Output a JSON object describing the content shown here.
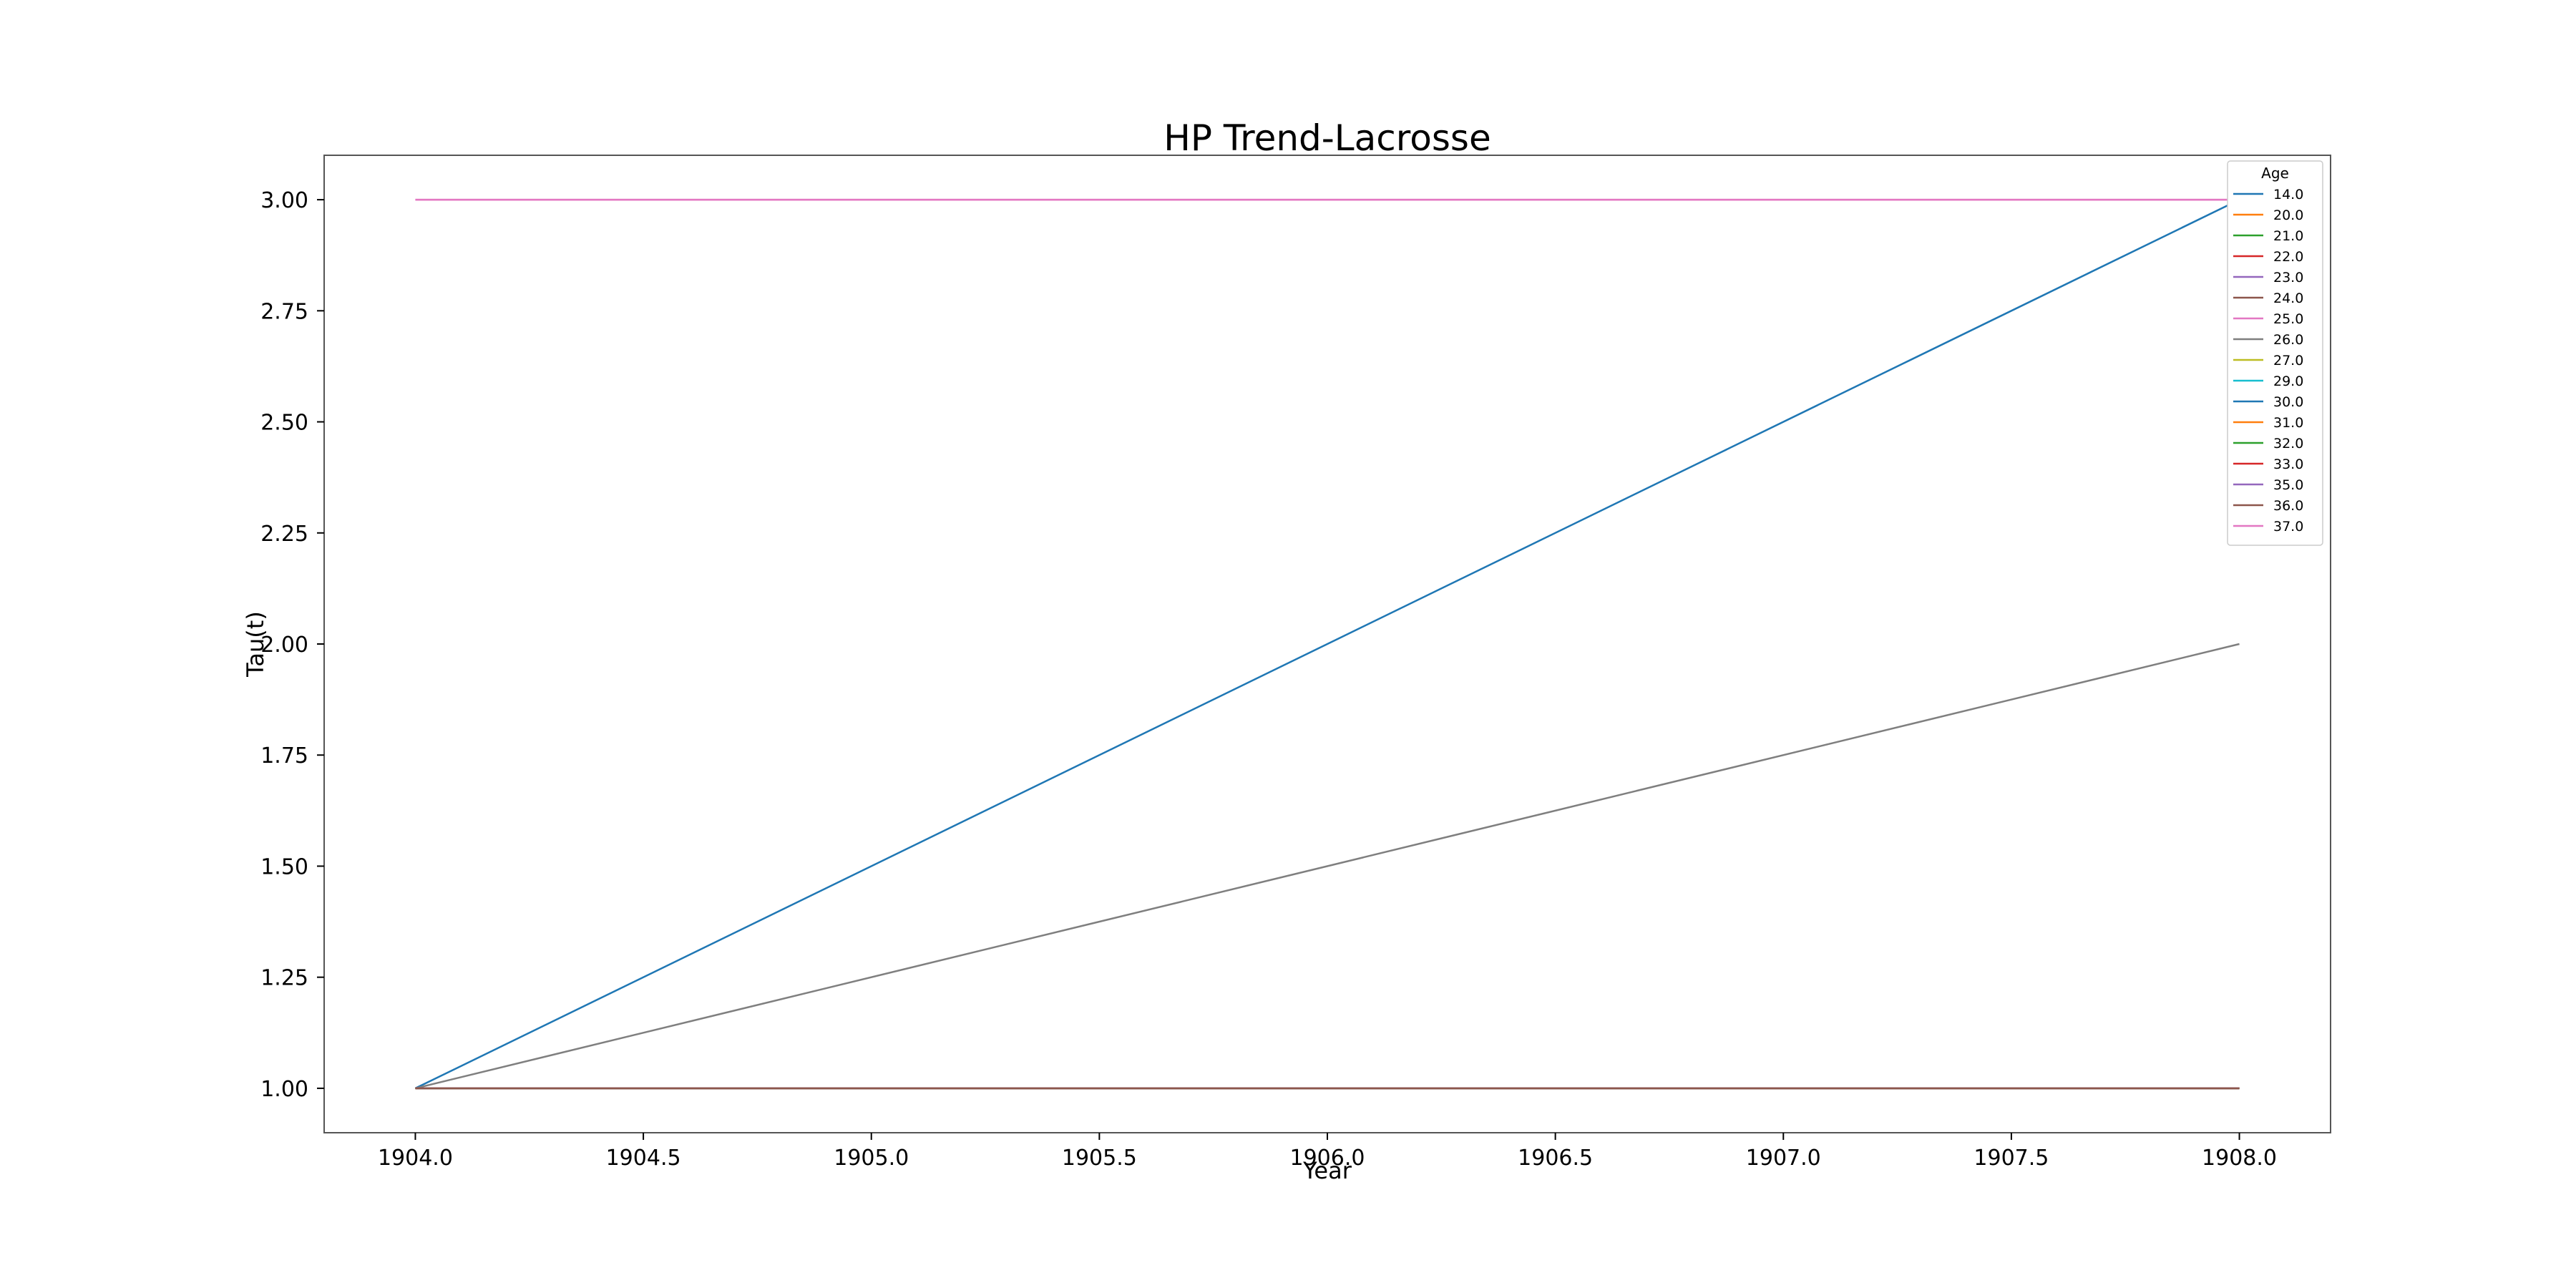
{
  "chart_data": {
    "type": "line",
    "title": "HP Trend-Lacrosse",
    "xlabel": "Year",
    "ylabel": "Tau(t)",
    "xlim": [
      1903.8,
      1908.2
    ],
    "ylim": [
      0.9,
      3.1
    ],
    "xticks": [
      1904.0,
      1904.5,
      1905.0,
      1905.5,
      1906.0,
      1906.5,
      1907.0,
      1907.5,
      1908.0
    ],
    "xtick_labels": [
      "1904.0",
      "1904.5",
      "1905.0",
      "1905.5",
      "1906.0",
      "1906.5",
      "1907.0",
      "1907.5",
      "1908.0"
    ],
    "yticks": [
      1.0,
      1.25,
      1.5,
      1.75,
      2.0,
      2.25,
      2.5,
      2.75,
      3.0
    ],
    "ytick_labels": [
      "1.00",
      "1.25",
      "1.50",
      "1.75",
      "2.00",
      "2.25",
      "2.50",
      "2.75",
      "3.00"
    ],
    "grid": false,
    "legend": {
      "title": "Age",
      "placement": "top-right"
    },
    "series": [
      {
        "name": "14.0",
        "color": "#1f77b4",
        "x": [
          1904.0,
          1908.0
        ],
        "y": [
          1.0,
          3.0
        ]
      },
      {
        "name": "20.0",
        "color": "#ff7f0e",
        "x": [
          1904.0,
          1908.0
        ],
        "y": [
          1.0,
          1.0
        ]
      },
      {
        "name": "21.0",
        "color": "#2ca02c",
        "x": [
          1904.0,
          1908.0
        ],
        "y": [
          1.0,
          1.0
        ]
      },
      {
        "name": "22.0",
        "color": "#d62728",
        "x": [
          1904.0,
          1908.0
        ],
        "y": [
          1.0,
          1.0
        ]
      },
      {
        "name": "23.0",
        "color": "#9467bd",
        "x": [
          1904.0,
          1908.0
        ],
        "y": [
          1.0,
          1.0
        ]
      },
      {
        "name": "24.0",
        "color": "#8c564b",
        "x": [
          1904.0,
          1908.0
        ],
        "y": [
          1.0,
          1.0
        ]
      },
      {
        "name": "25.0",
        "color": "#e377c2",
        "x": [
          1904.0,
          1908.0
        ],
        "y": [
          3.0,
          3.0
        ]
      },
      {
        "name": "26.0",
        "color": "#7f7f7f",
        "x": [
          1904.0,
          1908.0
        ],
        "y": [
          1.0,
          2.0
        ]
      },
      {
        "name": "27.0",
        "color": "#bcbd22",
        "x": [
          1904.0,
          1908.0
        ],
        "y": [
          1.0,
          1.0
        ]
      },
      {
        "name": "29.0",
        "color": "#17becf",
        "x": [
          1904.0,
          1908.0
        ],
        "y": [
          1.0,
          1.0
        ]
      },
      {
        "name": "30.0",
        "color": "#1f77b4",
        "x": [
          1904.0,
          1908.0
        ],
        "y": [
          1.0,
          1.0
        ]
      },
      {
        "name": "31.0",
        "color": "#ff7f0e",
        "x": [
          1904.0,
          1908.0
        ],
        "y": [
          1.0,
          1.0
        ]
      },
      {
        "name": "32.0",
        "color": "#2ca02c",
        "x": [
          1904.0,
          1908.0
        ],
        "y": [
          1.0,
          1.0
        ]
      },
      {
        "name": "33.0",
        "color": "#d62728",
        "x": [
          1904.0,
          1908.0
        ],
        "y": [
          1.0,
          1.0
        ]
      },
      {
        "name": "35.0",
        "color": "#9467bd",
        "x": [
          1904.0,
          1908.0
        ],
        "y": [
          1.0,
          1.0
        ]
      },
      {
        "name": "36.0",
        "color": "#8c564b",
        "x": [
          1904.0,
          1908.0
        ],
        "y": [
          1.0,
          1.0
        ]
      },
      {
        "name": "37.0",
        "color": "#e377c2",
        "x": [
          1904.0,
          1908.0
        ],
        "y": [
          3.0,
          3.0
        ]
      }
    ]
  }
}
